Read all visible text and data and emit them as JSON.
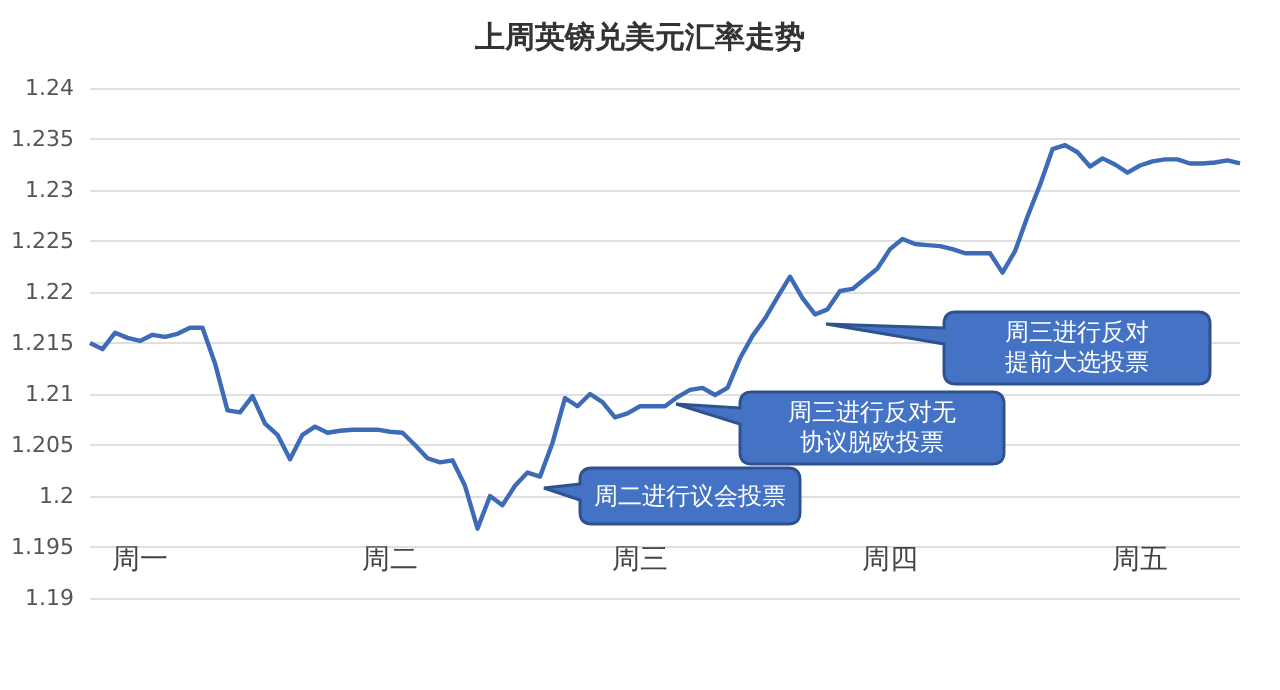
{
  "chart_data": {
    "type": "line",
    "title": "上周英镑兑美元汇率走势",
    "categories": [
      null,
      null,
      null,
      null,
      "周一",
      null,
      null,
      null,
      null,
      null,
      null,
      null,
      null,
      null,
      null,
      null,
      null,
      null,
      null,
      null,
      null,
      null,
      null,
      null,
      "周二",
      null,
      null,
      null,
      null,
      null,
      null,
      null,
      null,
      null,
      null,
      null,
      null,
      null,
      null,
      null,
      null,
      null,
      null,
      null,
      "周三",
      null,
      null,
      null,
      null,
      null,
      null,
      null,
      null,
      null,
      null,
      null,
      null,
      null,
      null,
      null,
      null,
      null,
      null,
      null,
      "周四",
      null,
      null,
      null,
      null,
      null,
      null,
      null,
      null,
      null,
      null,
      null,
      null,
      null,
      null,
      null,
      null,
      null,
      null,
      null,
      "周五",
      null,
      null,
      null,
      null,
      null,
      null,
      null,
      null
    ],
    "series": [
      {
        "color": "#3d6bb8",
        "values": [
          1.215,
          1.2144,
          1.216,
          1.2155,
          1.2152,
          1.2158,
          1.2156,
          1.2159,
          1.2165,
          1.2165,
          1.213,
          1.2084,
          1.2082,
          1.2098,
          1.2071,
          1.206,
          1.2036,
          1.206,
          1.2068,
          1.2062,
          1.2064,
          1.2065,
          1.2065,
          1.2065,
          1.2063,
          1.2062,
          1.205,
          1.2037,
          1.2033,
          1.2035,
          1.201,
          1.1968,
          1.2,
          1.1991,
          1.201,
          1.2023,
          1.2019,
          1.2052,
          1.2096,
          1.2088,
          1.21,
          1.2092,
          1.2077,
          1.2081,
          1.2088,
          1.2088,
          1.2088,
          1.2097,
          1.2104,
          1.2106,
          1.2099,
          1.2106,
          1.2135,
          1.2157,
          1.2174,
          1.2195,
          1.2215,
          1.2194,
          1.2178,
          1.2183,
          1.2201,
          1.2203,
          1.2213,
          1.2223,
          1.2242,
          1.2252,
          1.2247,
          1.2246,
          1.2245,
          1.2242,
          1.2238,
          1.2238,
          1.2238,
          1.2219,
          1.224,
          1.2274,
          1.2305,
          1.234,
          1.2344,
          1.2337,
          1.2323,
          1.2331,
          1.2325,
          1.2317,
          1.2324,
          1.2328,
          1.233,
          1.233,
          1.2326,
          1.2326,
          1.2327,
          1.2329,
          1.2326
        ]
      }
    ],
    "ylim": [
      1.19,
      1.24
    ],
    "yticks": [
      1.19,
      1.195,
      1.2,
      1.205,
      1.21,
      1.215,
      1.22,
      1.225,
      1.23,
      1.235,
      1.24
    ],
    "grid": "y",
    "marker": "none",
    "line_style": "solid",
    "annotations": [
      "周二进行议会投票",
      "周三进行反对无协议脱欧投票",
      "周三进行反对提前大选投票"
    ]
  }
}
